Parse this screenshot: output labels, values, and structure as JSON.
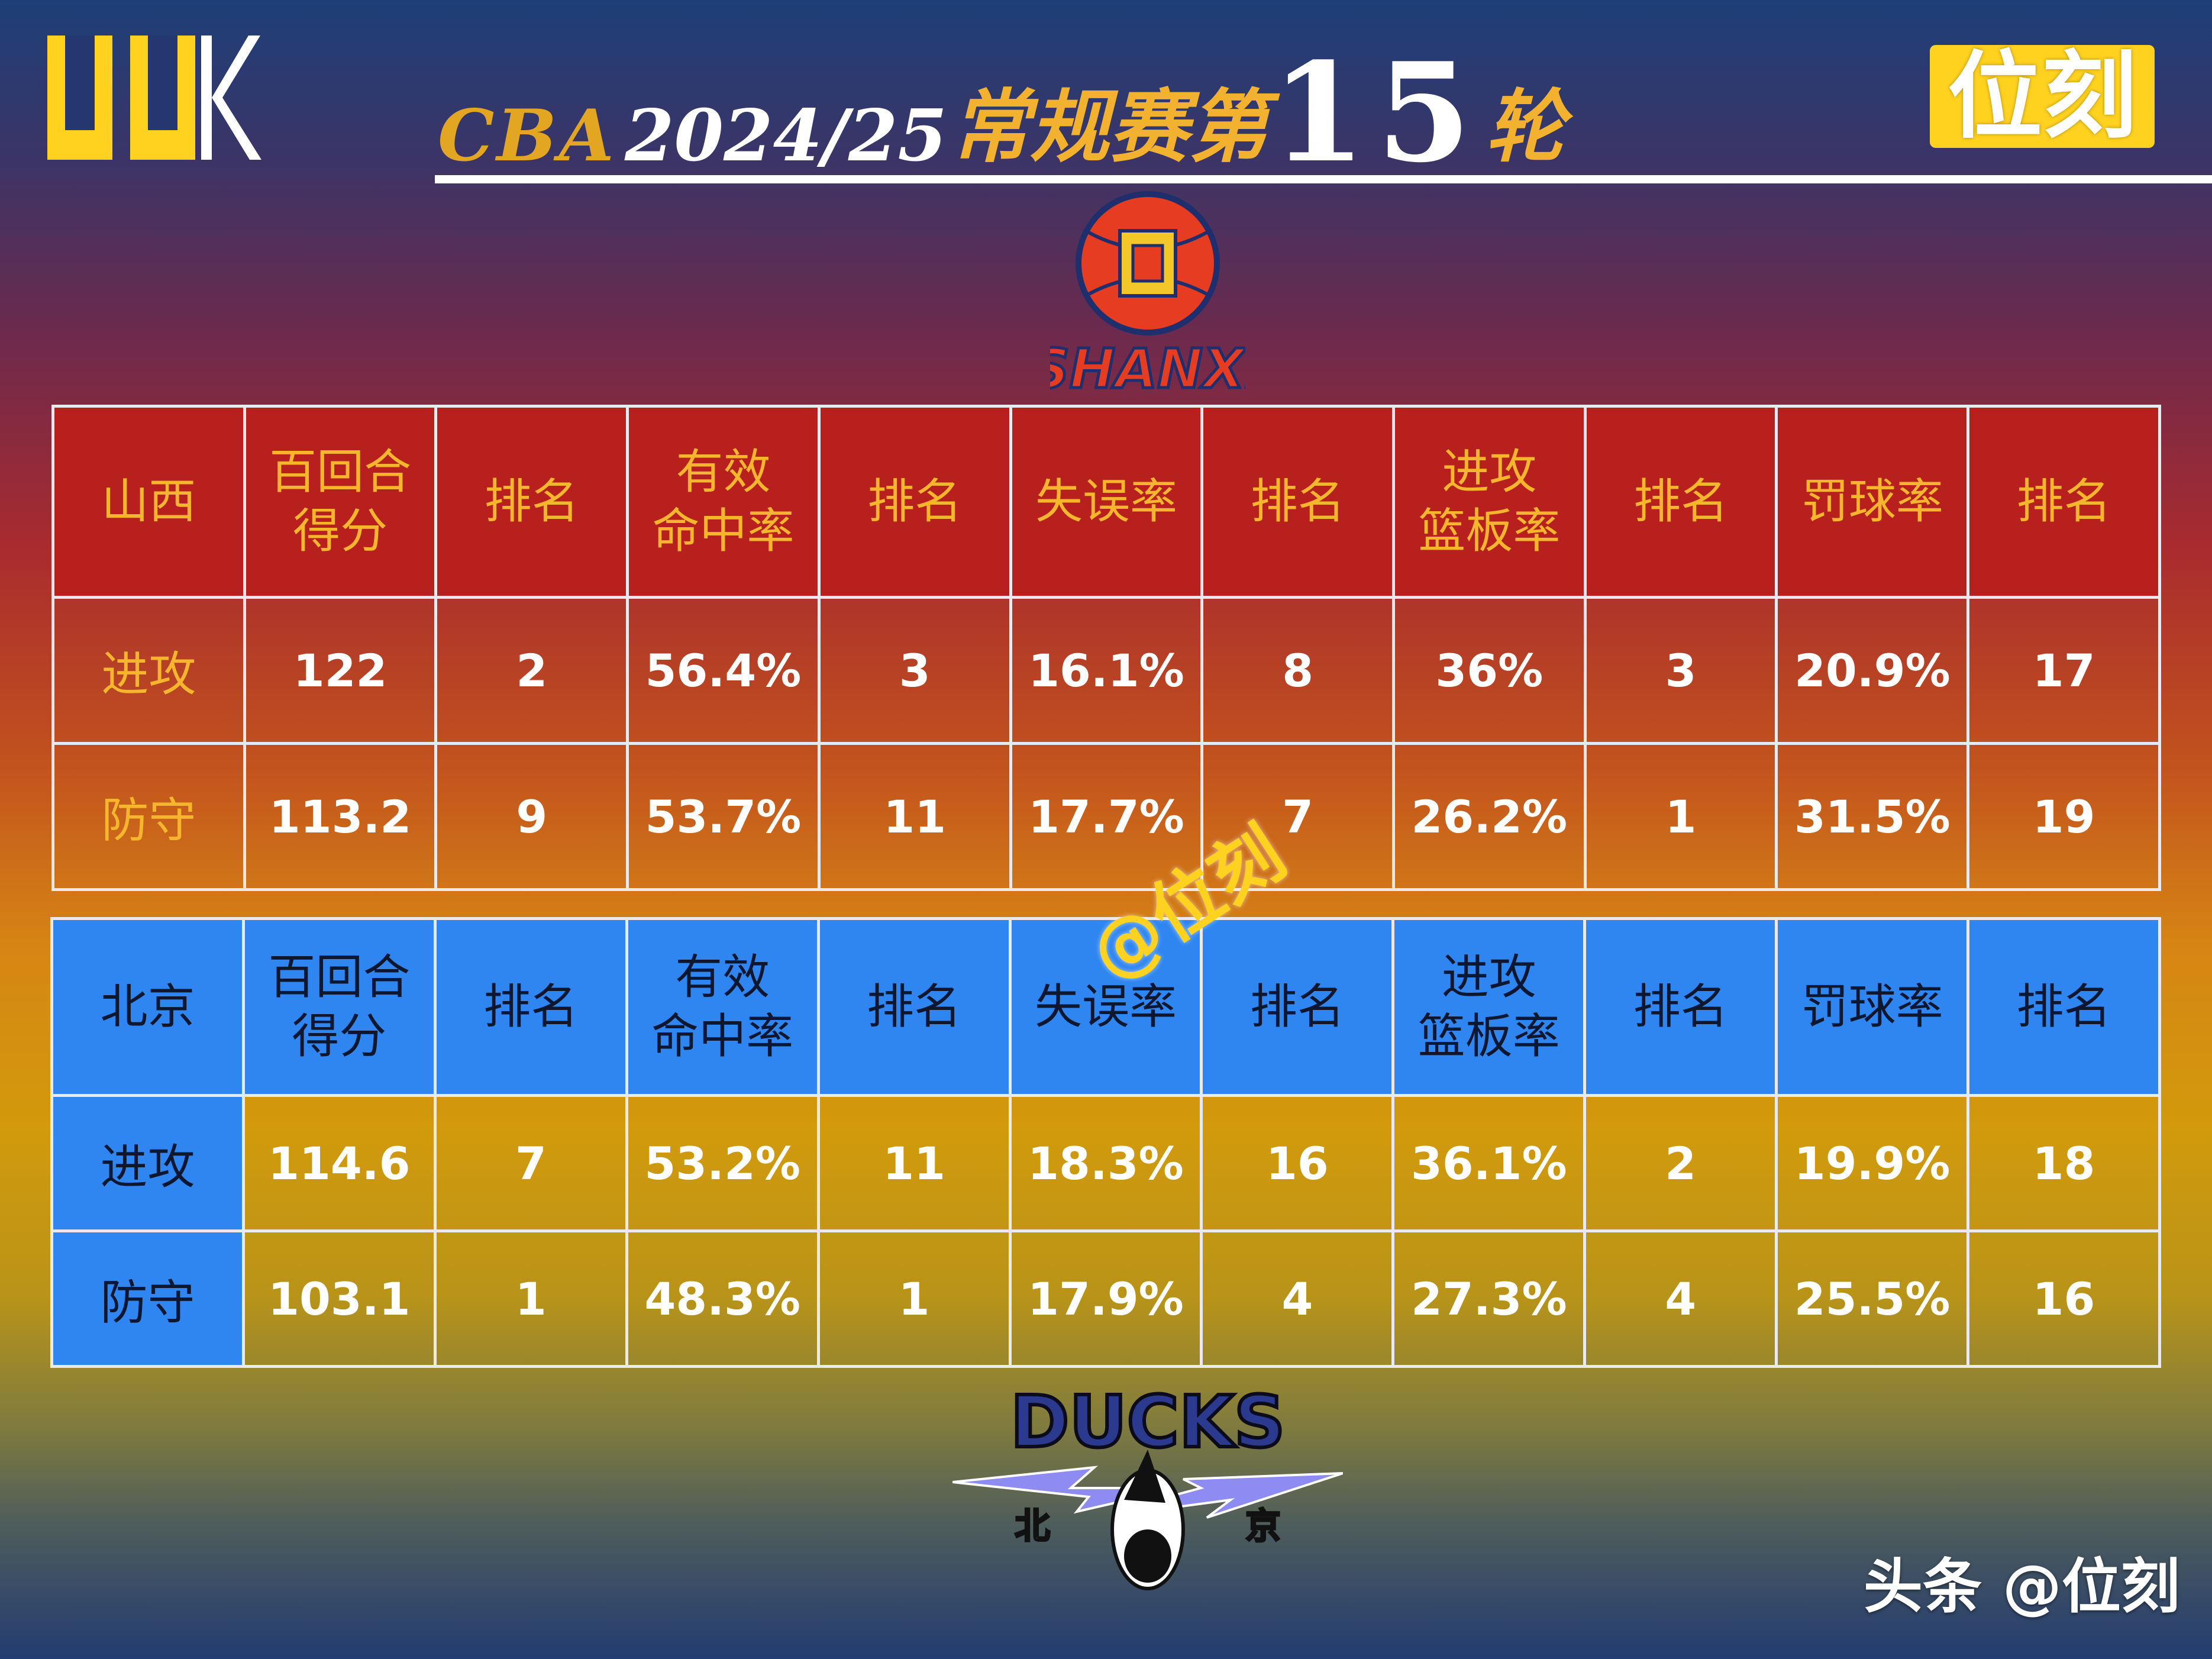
{
  "title": {
    "cba": "CBA",
    "season": "2024/25",
    "phase": "常规赛第",
    "round": "15",
    "round_suffix": "轮"
  },
  "brand": {
    "logo_letters": "UUK",
    "name_badge": "位刻"
  },
  "team_logos": {
    "shanxi_text": "SHANXI",
    "ducks_text": "DUCKS",
    "ducks_city_left": "北",
    "ducks_city_right": "京"
  },
  "watermark": "@位刻",
  "footer": "头条 @位刻",
  "colors": {
    "title_gold": "#e2a623",
    "shanxi_header": "#b8201e",
    "beijing_header": "#2f86f0",
    "badge_yellow": "#ffd21f"
  },
  "tables": {
    "shanxi": {
      "headers": [
        "山西",
        "百回合\n得分",
        "排名",
        "有效\n命中率",
        "排名",
        "失误率",
        "排名",
        "进攻\n篮板率",
        "排名",
        "罚球率",
        "排名"
      ],
      "rows": [
        {
          "label": "进攻",
          "values": [
            "122",
            "2",
            "56.4%",
            "3",
            "16.1%",
            "8",
            "36%",
            "3",
            "20.9%",
            "17"
          ]
        },
        {
          "label": "防守",
          "values": [
            "113.2",
            "9",
            "53.7%",
            "11",
            "17.7%",
            "7",
            "26.2%",
            "1",
            "31.5%",
            "19"
          ]
        }
      ]
    },
    "beijing": {
      "headers": [
        "北京",
        "百回合\n得分",
        "排名",
        "有效\n命中率",
        "排名",
        "失误率",
        "排名",
        "进攻\n篮板率",
        "排名",
        "罚球率",
        "排名"
      ],
      "rows": [
        {
          "label": "进攻",
          "values": [
            "114.6",
            "7",
            "53.2%",
            "11",
            "18.3%",
            "16",
            "36.1%",
            "2",
            "19.9%",
            "18"
          ]
        },
        {
          "label": "防守",
          "values": [
            "103.1",
            "1",
            "48.3%",
            "1",
            "17.9%",
            "4",
            "27.3%",
            "4",
            "25.5%",
            "16"
          ]
        }
      ]
    }
  }
}
